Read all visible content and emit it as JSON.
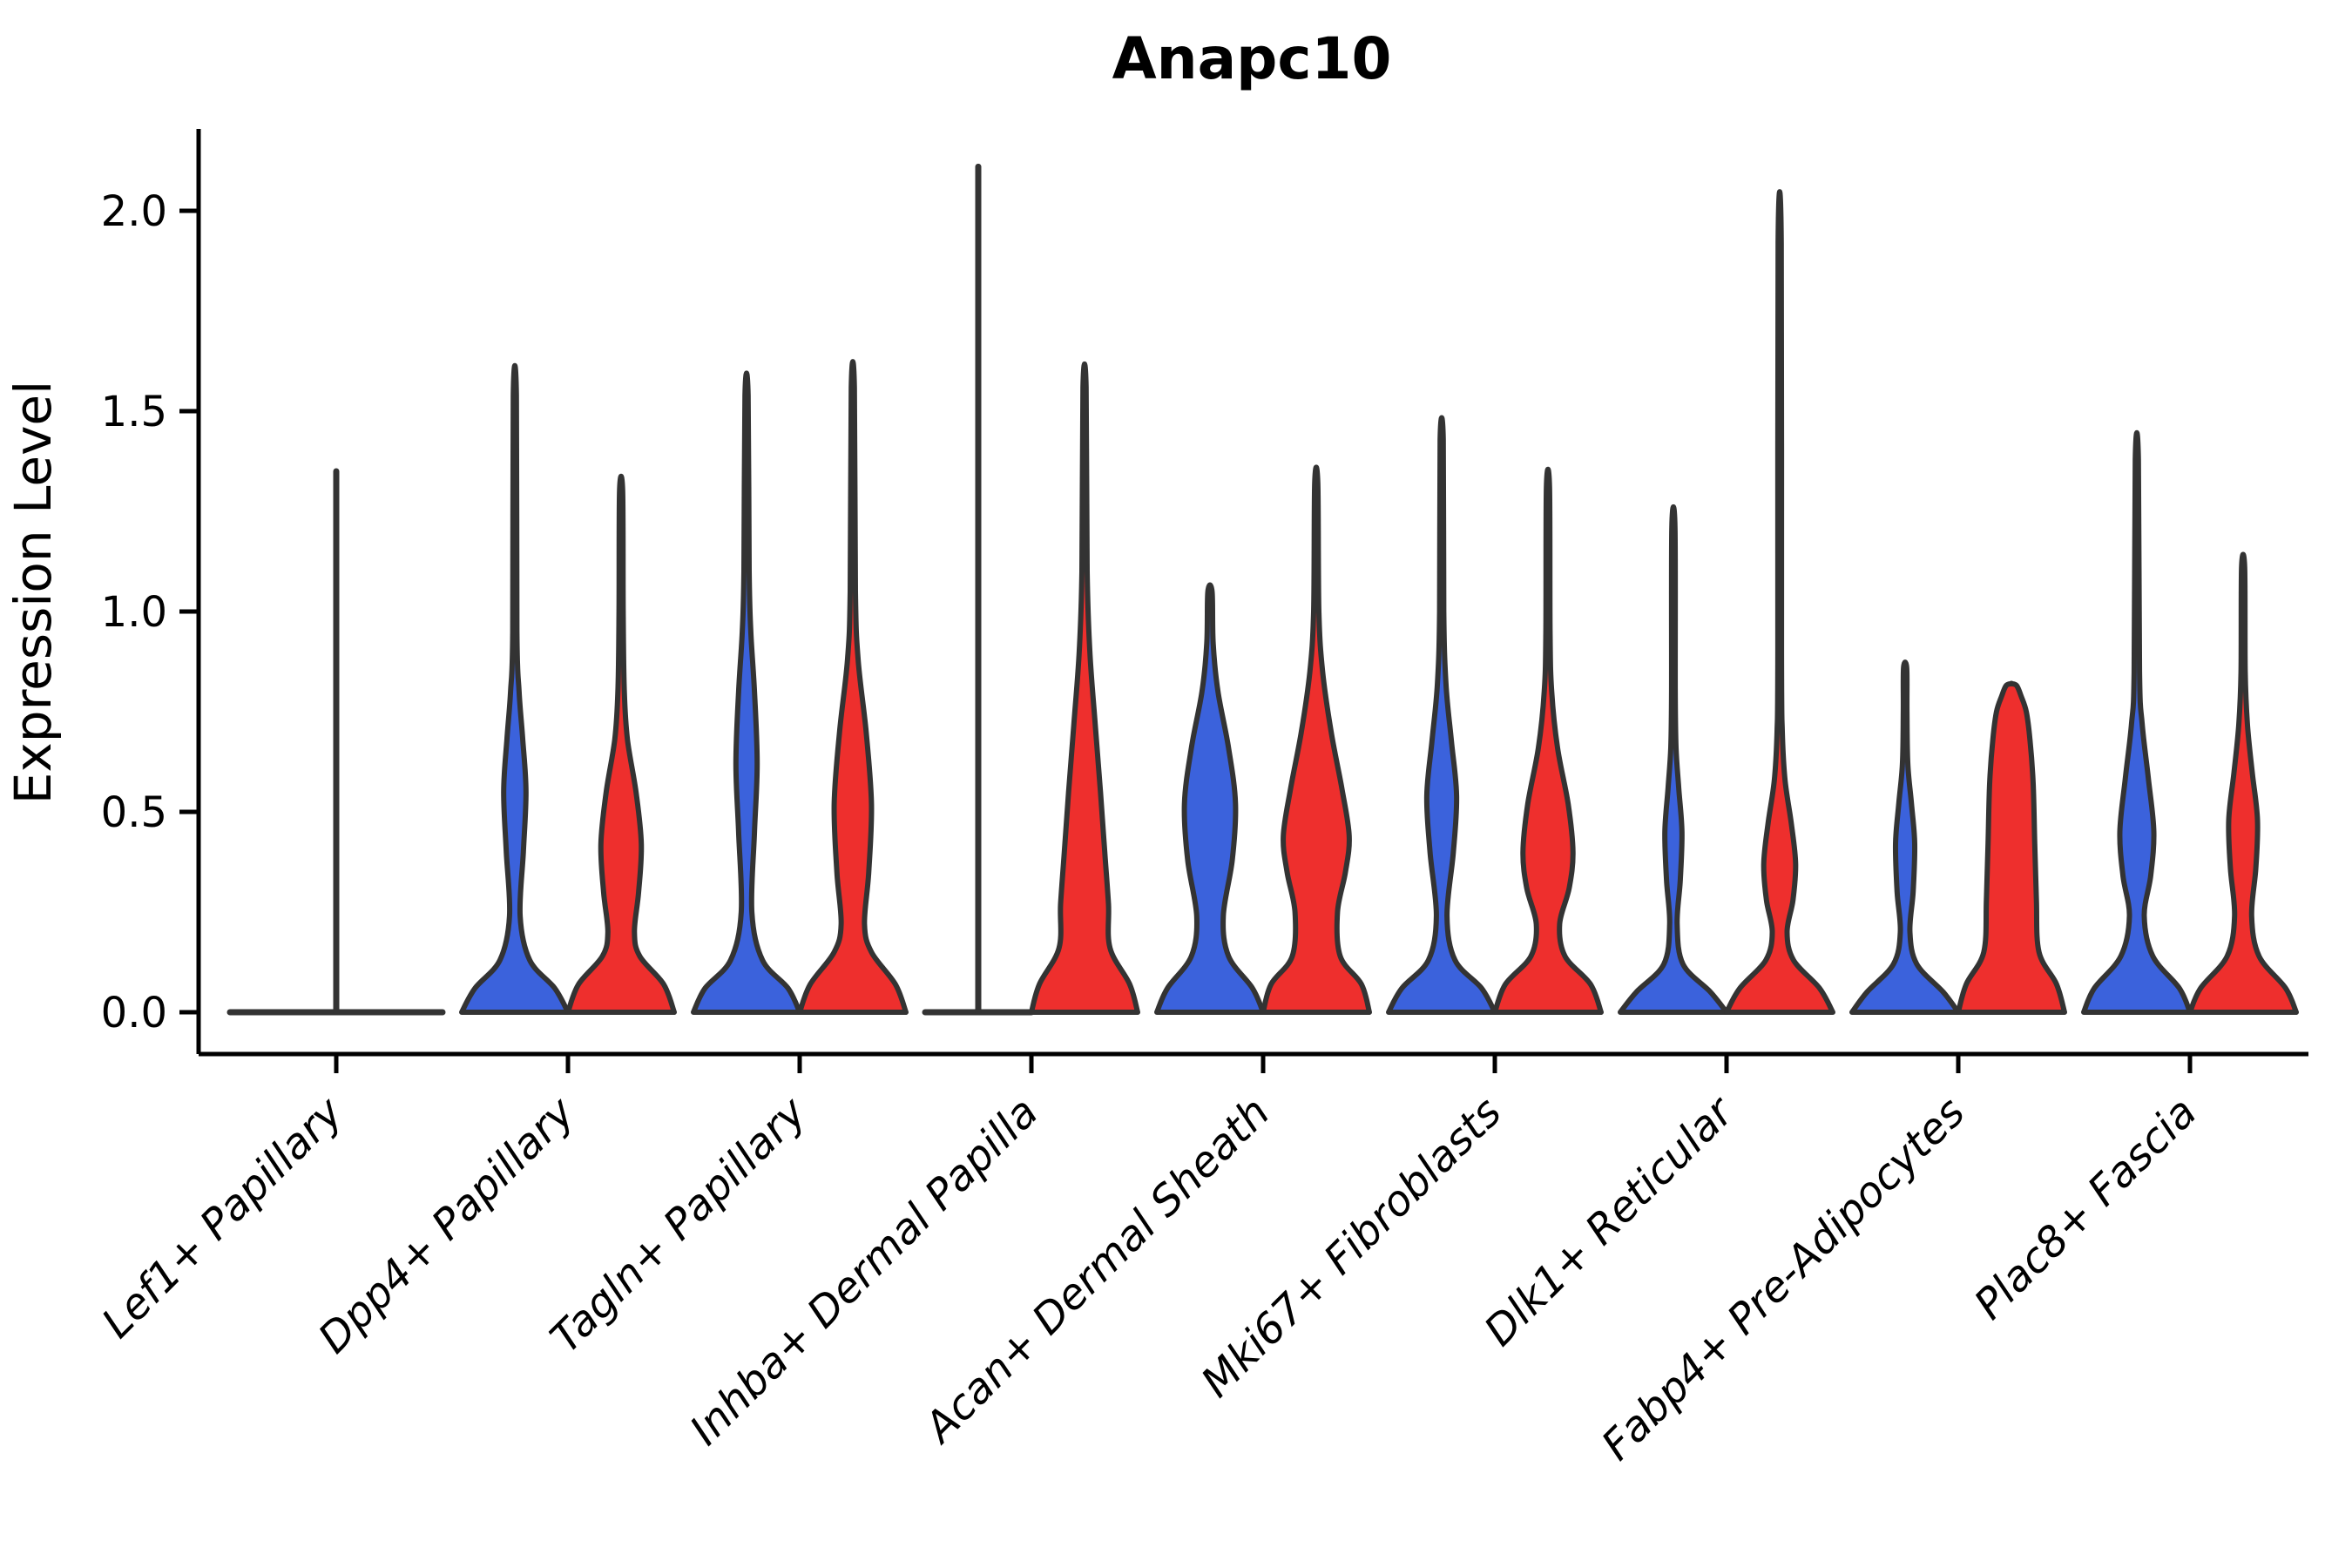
{
  "chart_data": {
    "type": "violin",
    "title": "Anapc10",
    "ylabel": "Expression Level",
    "xlabel": "",
    "ylim": [
      0.0,
      2.2
    ],
    "grid": false,
    "legend": "none",
    "yticks": [
      {
        "label": "0.0",
        "value": 0.0
      },
      {
        "label": "0.5",
        "value": 0.5
      },
      {
        "label": "1.0",
        "value": 1.0
      },
      {
        "label": "1.5",
        "value": 1.5
      },
      {
        "label": "2.0",
        "value": 2.0
      }
    ],
    "series": [
      {
        "side": "left",
        "color": "#3B62DC"
      },
      {
        "side": "right",
        "color": "#EE2F2D"
      }
    ],
    "stroke_color": "#333333",
    "categories": [
      "Lef1+ Papillary",
      "Dpp4+ Papillary",
      "Tagln+ Papillary",
      "Inhba+ Dermal Papilla",
      "Acan+ Dermal Sheath",
      "Mki67+ Fibroblasts",
      "Dlk1+ Reticular",
      "Fabp4+ Pre-Adipocytes",
      "Plac8+ Fascia"
    ],
    "groups": [
      {
        "label": "Lef1+ Papillary",
        "violins": [
          {
            "side": "center",
            "type": "flat_spike",
            "max": 1.35,
            "width_scale": 2.0
          }
        ]
      },
      {
        "label": "Dpp4+ Papillary",
        "violins": [
          {
            "side": "left",
            "type": "density",
            "max": 1.54,
            "profile": [
              [
                0,
                1
              ],
              [
                0.06,
                0.75
              ],
              [
                0.13,
                0.28
              ],
              [
                0.24,
                0.1
              ],
              [
                0.4,
                0.16
              ],
              [
                0.55,
                0.21
              ],
              [
                0.68,
                0.15
              ],
              [
                0.8,
                0.08
              ],
              [
                0.95,
                0.04
              ],
              [
                1.54,
                0.03
              ]
            ]
          },
          {
            "side": "right",
            "type": "density",
            "max": 1.3,
            "profile": [
              [
                0,
                1
              ],
              [
                0.07,
                0.8
              ],
              [
                0.14,
                0.35
              ],
              [
                0.2,
                0.25
              ],
              [
                0.3,
                0.33
              ],
              [
                0.42,
                0.38
              ],
              [
                0.55,
                0.28
              ],
              [
                0.68,
                0.12
              ],
              [
                0.8,
                0.06
              ],
              [
                1.0,
                0.04
              ],
              [
                1.3,
                0.03
              ]
            ]
          }
        ]
      },
      {
        "label": "Tagln+ Papillary",
        "violins": [
          {
            "side": "left",
            "type": "density",
            "max": 1.54,
            "profile": [
              [
                0,
                1
              ],
              [
                0.06,
                0.78
              ],
              [
                0.13,
                0.3
              ],
              [
                0.25,
                0.1
              ],
              [
                0.45,
                0.15
              ],
              [
                0.62,
                0.2
              ],
              [
                0.8,
                0.15
              ],
              [
                0.95,
                0.08
              ],
              [
                1.1,
                0.05
              ],
              [
                1.54,
                0.03
              ]
            ]
          },
          {
            "side": "right",
            "type": "density",
            "max": 1.56,
            "profile": [
              [
                0,
                1
              ],
              [
                0.07,
                0.8
              ],
              [
                0.15,
                0.35
              ],
              [
                0.22,
                0.22
              ],
              [
                0.35,
                0.3
              ],
              [
                0.52,
                0.35
              ],
              [
                0.7,
                0.25
              ],
              [
                0.88,
                0.1
              ],
              [
                1.05,
                0.05
              ],
              [
                1.56,
                0.03
              ]
            ]
          }
        ]
      },
      {
        "label": "Inhba+ Dermal Papilla",
        "violins": [
          {
            "side": "left",
            "type": "flat_spike",
            "max": 2.11,
            "width_scale": 1.0
          },
          {
            "side": "right",
            "type": "density",
            "max": 1.56,
            "profile": [
              [
                0,
                1
              ],
              [
                0.07,
                0.85
              ],
              [
                0.16,
                0.48
              ],
              [
                0.27,
                0.45
              ],
              [
                0.4,
                0.38
              ],
              [
                0.55,
                0.3
              ],
              [
                0.72,
                0.2
              ],
              [
                0.9,
                0.1
              ],
              [
                1.1,
                0.05
              ],
              [
                1.56,
                0.03
              ]
            ]
          }
        ]
      },
      {
        "label": "Acan+ Dermal Sheath",
        "violins": [
          {
            "side": "left",
            "type": "density",
            "max": 1.05,
            "profile": [
              [
                0,
                1
              ],
              [
                0.06,
                0.8
              ],
              [
                0.14,
                0.35
              ],
              [
                0.24,
                0.25
              ],
              [
                0.38,
                0.42
              ],
              [
                0.52,
                0.48
              ],
              [
                0.66,
                0.35
              ],
              [
                0.8,
                0.15
              ],
              [
                0.92,
                0.06
              ],
              [
                1.05,
                0.04
              ]
            ]
          },
          {
            "side": "right",
            "type": "density",
            "max": 1.32,
            "profile": [
              [
                0,
                1
              ],
              [
                0.07,
                0.85
              ],
              [
                0.14,
                0.45
              ],
              [
                0.25,
                0.4
              ],
              [
                0.35,
                0.55
              ],
              [
                0.44,
                0.62
              ],
              [
                0.56,
                0.48
              ],
              [
                0.7,
                0.28
              ],
              [
                0.85,
                0.12
              ],
              [
                1.0,
                0.05
              ],
              [
                1.32,
                0.03
              ]
            ]
          }
        ]
      },
      {
        "label": "Mki67+ Fibroblasts",
        "violins": [
          {
            "side": "left",
            "type": "density",
            "max": 1.43,
            "profile": [
              [
                0,
                1
              ],
              [
                0.06,
                0.75
              ],
              [
                0.13,
                0.25
              ],
              [
                0.24,
                0.1
              ],
              [
                0.4,
                0.22
              ],
              [
                0.54,
                0.28
              ],
              [
                0.68,
                0.18
              ],
              [
                0.82,
                0.08
              ],
              [
                1.0,
                0.04
              ],
              [
                1.43,
                0.03
              ]
            ]
          },
          {
            "side": "right",
            "type": "density",
            "max": 1.31,
            "profile": [
              [
                0,
                1
              ],
              [
                0.07,
                0.8
              ],
              [
                0.14,
                0.32
              ],
              [
                0.22,
                0.22
              ],
              [
                0.31,
                0.4
              ],
              [
                0.4,
                0.47
              ],
              [
                0.52,
                0.38
              ],
              [
                0.66,
                0.18
              ],
              [
                0.8,
                0.07
              ],
              [
                0.95,
                0.04
              ],
              [
                1.31,
                0.03
              ]
            ]
          }
        ]
      },
      {
        "label": "Dlk1+ Reticular",
        "violins": [
          {
            "side": "left",
            "type": "density",
            "max": 1.21,
            "profile": [
              [
                0,
                1
              ],
              [
                0.05,
                0.7
              ],
              [
                0.12,
                0.18
              ],
              [
                0.22,
                0.07
              ],
              [
                0.33,
                0.13
              ],
              [
                0.45,
                0.16
              ],
              [
                0.56,
                0.1
              ],
              [
                0.66,
                0.05
              ],
              [
                0.8,
                0.035
              ],
              [
                1.21,
                0.03
              ]
            ]
          },
          {
            "side": "right",
            "type": "density",
            "max": 1.92,
            "profile": [
              [
                0,
                1
              ],
              [
                0.06,
                0.75
              ],
              [
                0.13,
                0.26
              ],
              [
                0.2,
                0.14
              ],
              [
                0.28,
                0.25
              ],
              [
                0.37,
                0.3
              ],
              [
                0.47,
                0.22
              ],
              [
                0.58,
                0.1
              ],
              [
                0.7,
                0.05
              ],
              [
                0.9,
                0.035
              ],
              [
                1.92,
                0.03
              ]
            ]
          }
        ]
      },
      {
        "label": "Fabp4+ Pre-Adipocytes",
        "violins": [
          {
            "side": "left",
            "type": "density",
            "max": 0.86,
            "profile": [
              [
                0,
                1
              ],
              [
                0.05,
                0.72
              ],
              [
                0.12,
                0.22
              ],
              [
                0.2,
                0.09
              ],
              [
                0.3,
                0.15
              ],
              [
                0.42,
                0.18
              ],
              [
                0.52,
                0.12
              ],
              [
                0.62,
                0.05
              ],
              [
                0.75,
                0.035
              ],
              [
                0.86,
                0.03
              ]
            ]
          },
          {
            "side": "right",
            "type": "density",
            "max": 0.82,
            "blunt": true,
            "profile": [
              [
                0,
                1
              ],
              [
                0.07,
                0.85
              ],
              [
                0.15,
                0.52
              ],
              [
                0.28,
                0.47
              ],
              [
                0.42,
                0.44
              ],
              [
                0.57,
                0.41
              ],
              [
                0.68,
                0.35
              ],
              [
                0.75,
                0.28
              ],
              [
                0.79,
                0.18
              ],
              [
                0.815,
                0.1
              ],
              [
                0.82,
                0.0
              ]
            ]
          }
        ]
      },
      {
        "label": "Plac8+ Fascia",
        "violins": [
          {
            "side": "left",
            "type": "density",
            "max": 1.38,
            "profile": [
              [
                0,
                1
              ],
              [
                0.06,
                0.8
              ],
              [
                0.14,
                0.3
              ],
              [
                0.24,
                0.14
              ],
              [
                0.34,
                0.26
              ],
              [
                0.45,
                0.32
              ],
              [
                0.58,
                0.22
              ],
              [
                0.72,
                0.1
              ],
              [
                0.85,
                0.05
              ],
              [
                1.38,
                0.03
              ]
            ]
          },
          {
            "side": "right",
            "type": "density",
            "max": 1.11,
            "profile": [
              [
                0,
                1
              ],
              [
                0.06,
                0.8
              ],
              [
                0.14,
                0.3
              ],
              [
                0.24,
                0.16
              ],
              [
                0.36,
                0.24
              ],
              [
                0.48,
                0.27
              ],
              [
                0.6,
                0.17
              ],
              [
                0.72,
                0.08
              ],
              [
                0.85,
                0.04
              ],
              [
                1.11,
                0.03
              ]
            ]
          }
        ]
      }
    ]
  }
}
